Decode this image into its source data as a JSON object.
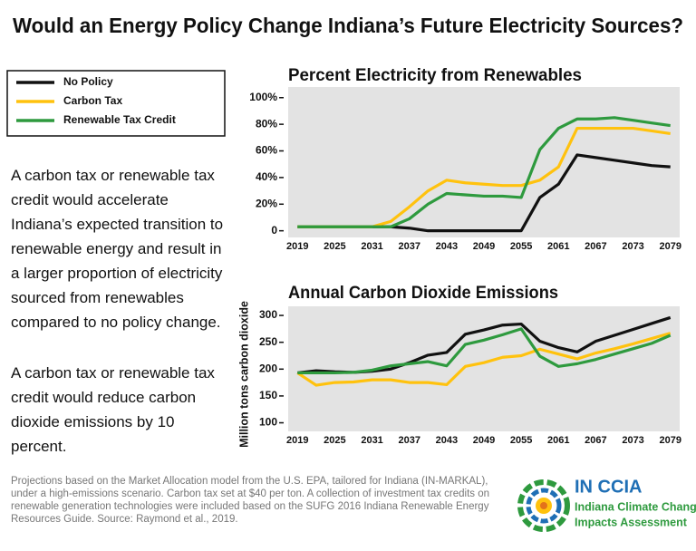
{
  "title": "Would an Energy Policy Change Indiana’s Future Electricity Sources?",
  "description": [
    "A carbon tax or renewable tax credit would accelerate Indiana’s expected transition to renewable energy and result in a larger proportion of electricity sourced from renewables compared to no policy change.",
    "A carbon tax or renewable tax credit would reduce carbon dioxide emissions by 10 percent."
  ],
  "footnote": "Projections based on the Market Allocation model from the U.S. EPA, tailored for Indiana (IN-MARKAL), under a high-emissions scenario. Carbon tax set at $40 per ton. A collection of investment tax credits on renewable generation technologies were included based on the SUFG 2016 Indiana Renewable Energy Resources Guide. Source: Raymond et al., 2019.",
  "logo": {
    "name": "IN CCIA",
    "line1": "Indiana Climate Change",
    "line2": "Impacts Assessment"
  },
  "chart_data": [
    {
      "type": "line",
      "title": "Percent Electricity from Renewables",
      "x": [
        2019,
        2022,
        2025,
        2028,
        2031,
        2034,
        2037,
        2040,
        2043,
        2046,
        2049,
        2052,
        2055,
        2058,
        2061,
        2064,
        2067,
        2070,
        2073,
        2076,
        2079
      ],
      "xlim": [
        2017.5,
        2080.5
      ],
      "xticks": [
        2019,
        2025,
        2031,
        2037,
        2043,
        2049,
        2055,
        2061,
        2067,
        2073,
        2079
      ],
      "ylim": [
        -5,
        108
      ],
      "yticks": [
        0,
        {
          "value": 20,
          "label": "20%"
        },
        {
          "value": 40,
          "label": "40%"
        },
        {
          "value": 60,
          "label": "60%"
        },
        {
          "value": 80,
          "label": "80%"
        },
        {
          "value": 100,
          "label": "100%"
        }
      ],
      "series": [
        {
          "name": "No Policy",
          "color": "#111111",
          "values": [
            3,
            3,
            3,
            3,
            3,
            3,
            2,
            0,
            0,
            0,
            0,
            0,
            0,
            25,
            35,
            57,
            55,
            53,
            51,
            49,
            48
          ]
        },
        {
          "name": "Carbon Tax",
          "color": "#ffc20e",
          "values": [
            3,
            3,
            3,
            3,
            3,
            7,
            18,
            30,
            38,
            36,
            35,
            34,
            34,
            38,
            48,
            77,
            77,
            77,
            77,
            75,
            73
          ]
        },
        {
          "name": "Renewable Tax Credit",
          "color": "#2e9a3e",
          "values": [
            3,
            3,
            3,
            3,
            3,
            3,
            9,
            20,
            28,
            27,
            26,
            26,
            25,
            61,
            77,
            84,
            84,
            85,
            83,
            81,
            79
          ]
        }
      ]
    },
    {
      "type": "line",
      "title": "Annual Carbon Dioxide Emissions",
      "y_label": "Million tons carbon dioxide",
      "x": [
        2019,
        2022,
        2025,
        2028,
        2031,
        2034,
        2037,
        2040,
        2043,
        2046,
        2049,
        2052,
        2055,
        2058,
        2061,
        2064,
        2067,
        2070,
        2073,
        2076,
        2079
      ],
      "xlim": [
        2017.5,
        2080.5
      ],
      "xticks": [
        2019,
        2025,
        2031,
        2037,
        2043,
        2049,
        2055,
        2061,
        2067,
        2073,
        2079
      ],
      "ylim": [
        84,
        317
      ],
      "yticks": [
        100,
        150,
        200,
        250,
        300
      ],
      "series": [
        {
          "color": "#111111",
          "values": [
            193,
            197,
            195,
            194,
            196,
            200,
            212,
            226,
            231,
            265,
            273,
            282,
            284,
            252,
            240,
            232,
            252,
            263,
            274,
            285,
            296
          ]
        },
        {
          "color": "#ffc20e",
          "values": [
            193,
            170,
            175,
            176,
            180,
            180,
            175,
            175,
            171,
            205,
            212,
            222,
            225,
            237,
            228,
            219,
            230,
            238,
            247,
            257,
            267
          ]
        },
        {
          "color": "#2e9a3e",
          "values": [
            193,
            193,
            193,
            194,
            198,
            206,
            210,
            214,
            206,
            246,
            254,
            264,
            275,
            224,
            205,
            210,
            218,
            228,
            238,
            248,
            263
          ]
        }
      ]
    }
  ]
}
